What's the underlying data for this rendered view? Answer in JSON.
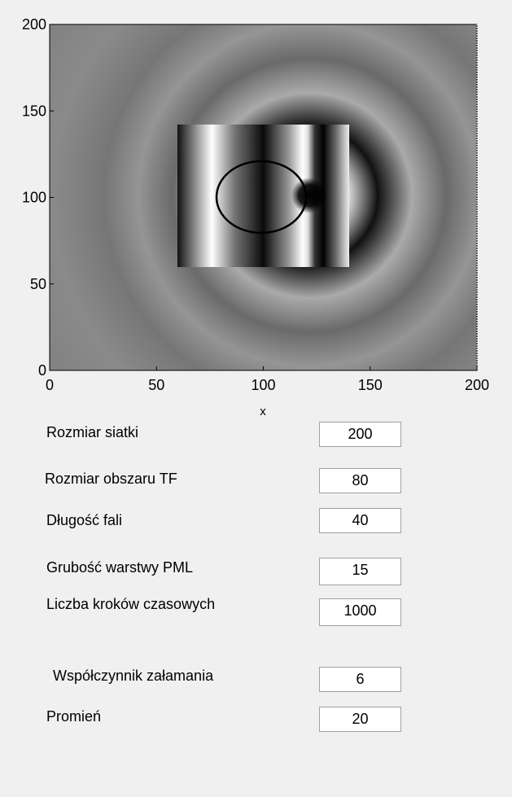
{
  "plot": {
    "xlabel": "x",
    "xlim": [
      0,
      200
    ],
    "ylim": [
      0,
      200
    ],
    "xticks": [
      0,
      50,
      100,
      150,
      200
    ],
    "yticks": [
      0,
      50,
      100,
      150,
      200
    ]
  },
  "fields": [
    {
      "label": "Rozmiar siatki",
      "value": "200"
    },
    {
      "label": "Rozmiar obszaru TF",
      "value": "80"
    },
    {
      "label": "Długość fali",
      "value": "40"
    },
    {
      "label": "Grubość warstwy PML",
      "value": "15"
    },
    {
      "label": "Liczba kroków czasowych",
      "value": "1000"
    },
    {
      "label": "Współczynnik załamania",
      "value": "6"
    },
    {
      "label": "Promień",
      "value": "20"
    }
  ]
}
